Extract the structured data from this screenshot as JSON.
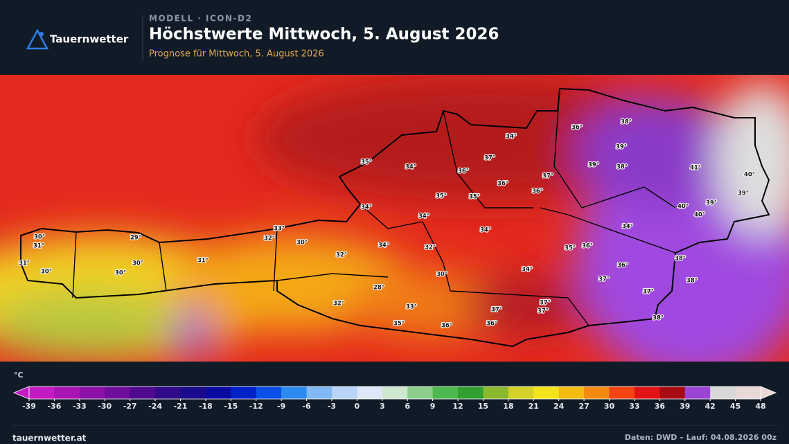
{
  "header": {
    "logo": "Tauernwetter",
    "model": "MODELL · ICON-D2",
    "title": "Höchstwerte Mittwoch, 5. August 2026",
    "subtitle": "Prognose für Mittwoch, 5. August 2026"
  },
  "map": {
    "labels": [
      "30°",
      "31°",
      "31°",
      "30°",
      "29°",
      "30°",
      "30°",
      "31°",
      "32°",
      "33°",
      "30°",
      "32°",
      "34°",
      "34°",
      "34°",
      "32°",
      "30°",
      "28°",
      "32°",
      "33°",
      "35°",
      "36°",
      "36°",
      "37°",
      "37°",
      "37°",
      "34°",
      "34°",
      "35°",
      "36°",
      "36°",
      "37°",
      "37°",
      "38°",
      "38°",
      "38°",
      "34°",
      "35°",
      "34°",
      "36°",
      "37°",
      "34°",
      "36°",
      "38°",
      "39°",
      "39°",
      "38°",
      "37°",
      "36°",
      "36°",
      "35°",
      "35°",
      "41°",
      "40°",
      "39°",
      "39°",
      "40°",
      "40°"
    ]
  },
  "legend": {
    "unit": "°C",
    "ticks": [
      -39,
      -36,
      -33,
      -30,
      -27,
      -24,
      -21,
      -18,
      -15,
      -12,
      -9,
      -6,
      -3,
      0,
      3,
      6,
      9,
      12,
      15,
      18,
      21,
      24,
      27,
      30,
      33,
      36,
      39,
      42,
      45,
      48
    ],
    "colors": [
      "#c41ac4",
      "#a814b4",
      "#8c10a8",
      "#6e0c9c",
      "#500a90",
      "#300a88",
      "#1a0a8c",
      "#0a0aa0",
      "#0020c8",
      "#0a50e8",
      "#2a8af0",
      "#80b8f5",
      "#b8d4f8",
      "#dce8f8",
      "#cfe6cf",
      "#8ecf8e",
      "#4db84d",
      "#30a030",
      "#8cb82c",
      "#d4d028",
      "#f4e41c",
      "#f4bc10",
      "#f48a10",
      "#f44414",
      "#e01414",
      "#a80a14",
      "#9c44d4",
      "#d8d8d8",
      "#ead8d8"
    ]
  },
  "footer": {
    "site": "tauernwetter.at",
    "source": "Daten: DWD – Lauf: 04.08.2026 00z"
  }
}
